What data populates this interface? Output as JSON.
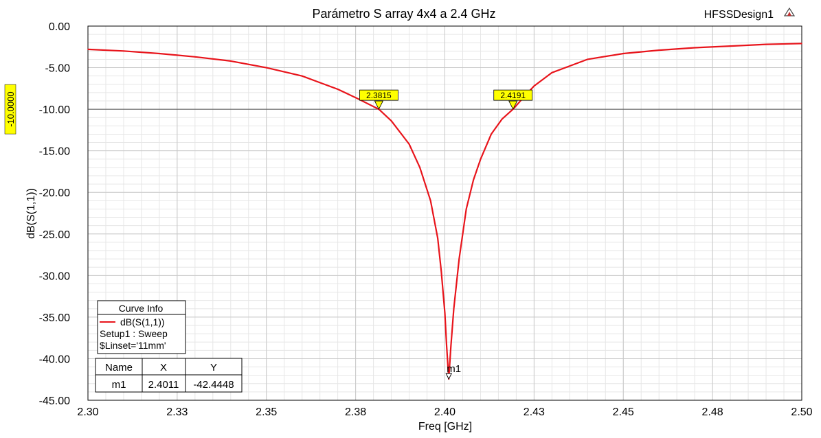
{
  "header": {
    "title": "Parámetro S array 4x4 a 2.4 GHz",
    "design_name": "HFSSDesign1"
  },
  "colors": {
    "curve": "#e8141b",
    "marker_fill": "#ffff00",
    "grid_major": "#c8c8c8",
    "grid_minor": "#e6e6e6"
  },
  "icons": {
    "corner": "triangle-logo-icon"
  },
  "chart_data": {
    "type": "line",
    "title": "Parámetro S array 4x4 a 2.4 GHz",
    "xlabel": "Freq [GHz]",
    "ylabel": "dB(S(1,1))",
    "xlim": [
      2.3,
      2.5
    ],
    "ylim": [
      -45,
      0
    ],
    "x_ticks": [
      2.3,
      2.325,
      2.35,
      2.375,
      2.4,
      2.425,
      2.45,
      2.475,
      2.5
    ],
    "x_tick_labels": [
      "2.30",
      "2.33",
      "2.35",
      "2.38",
      "2.40",
      "2.43",
      "2.45",
      "2.48",
      "2.50"
    ],
    "y_ticks": [
      0,
      -5,
      -10,
      -15,
      -20,
      -25,
      -30,
      -35,
      -40,
      -45
    ],
    "y_tick_labels": [
      "0.00",
      "-5.00",
      "-10.00",
      "-15.00",
      "-20.00",
      "-25.00",
      "-30.00",
      "-35.00",
      "-40.00",
      "-45.00"
    ],
    "grid": true,
    "series": [
      {
        "name": "dB(S(1,1))",
        "x": [
          2.3,
          2.31,
          2.32,
          2.33,
          2.34,
          2.35,
          2.36,
          2.365,
          2.37,
          2.375,
          2.3815,
          2.385,
          2.39,
          2.393,
          2.396,
          2.398,
          2.399,
          2.4,
          2.4005,
          2.4011,
          2.4017,
          2.4025,
          2.404,
          2.406,
          2.408,
          2.41,
          2.413,
          2.416,
          2.4191,
          2.422,
          2.425,
          2.43,
          2.435,
          2.44,
          2.45,
          2.46,
          2.47,
          2.48,
          2.49,
          2.5
        ],
        "y": [
          -2.8,
          -3.0,
          -3.3,
          -3.7,
          -4.2,
          -5.0,
          -6.0,
          -6.8,
          -7.6,
          -8.6,
          -10.0,
          -11.4,
          -14.2,
          -17.0,
          -21.0,
          -25.5,
          -29.5,
          -34.5,
          -38.5,
          -42.44,
          -38.5,
          -34.0,
          -28.0,
          -22.0,
          -18.5,
          -16.0,
          -13.0,
          -11.2,
          -10.0,
          -8.6,
          -7.2,
          -5.6,
          -4.8,
          -4.0,
          -3.3,
          -2.9,
          -2.6,
          -2.4,
          -2.2,
          -2.1
        ]
      }
    ],
    "reference_line": {
      "y": -10,
      "label": "-10.0000"
    },
    "delta_markers": [
      {
        "x": 2.3815,
        "y": -10,
        "label": "2.3815"
      },
      {
        "x": 2.4191,
        "y": -10,
        "label": "2.4191"
      }
    ],
    "marker": {
      "name": "m1",
      "x": 2.4011,
      "y": -42.4448
    },
    "legend": {
      "placement": "bottom-left",
      "title": "Curve Info",
      "entry": "dB(S(1,1))",
      "lines": [
        "Setup1 : Sweep",
        "$Linset='11mm'"
      ]
    },
    "marker_table": {
      "headers": [
        "Name",
        "X",
        "Y"
      ],
      "rows": [
        [
          "m1",
          "2.4011",
          "-42.4448"
        ]
      ]
    }
  }
}
